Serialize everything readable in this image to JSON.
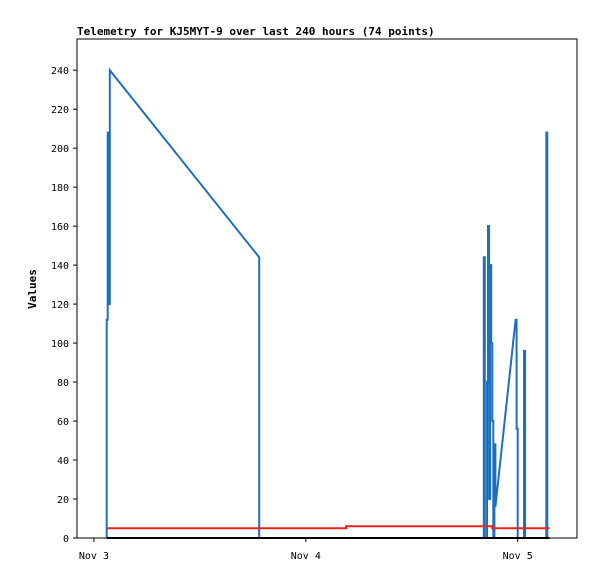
{
  "chart_data": {
    "type": "line",
    "title": "Telemetry for KJ5MYT-9 over last 240 hours (74 points)",
    "xlabel": "",
    "ylabel": "Values",
    "grid": false,
    "legend": "none",
    "xlim": [
      -0.08,
      2.28
    ],
    "ylim": [
      0,
      256
    ],
    "yticks": [
      0,
      20,
      40,
      60,
      80,
      100,
      120,
      140,
      160,
      180,
      200,
      220,
      240
    ],
    "xticks": [
      {
        "value": 0,
        "label": "Nov 3"
      },
      {
        "value": 1,
        "label": "Nov 4"
      },
      {
        "value": 2,
        "label": "Nov 5"
      }
    ],
    "series": [
      {
        "color": "#1f6fbf",
        "points": [
          [
            0.06,
            0
          ],
          [
            0.06,
            112
          ],
          [
            0.065,
            112
          ],
          [
            0.065,
            208
          ],
          [
            0.07,
            208
          ],
          [
            0.07,
            120
          ],
          [
            0.075,
            120
          ],
          [
            0.075,
            240
          ],
          [
            0.78,
            144
          ],
          [
            0.78,
            0
          ],
          [
            1.84,
            0
          ],
          [
            1.84,
            144
          ],
          [
            1.845,
            144
          ],
          [
            1.845,
            0
          ],
          [
            1.855,
            0
          ],
          [
            1.855,
            80
          ],
          [
            1.86,
            80
          ],
          [
            1.86,
            160
          ],
          [
            1.865,
            160
          ],
          [
            1.865,
            20
          ],
          [
            1.87,
            20
          ],
          [
            1.87,
            140
          ],
          [
            1.875,
            140
          ],
          [
            1.875,
            100
          ],
          [
            1.88,
            100
          ],
          [
            1.88,
            60
          ],
          [
            1.885,
            60
          ],
          [
            1.885,
            0
          ],
          [
            1.89,
            0
          ],
          [
            1.89,
            48
          ],
          [
            1.895,
            48
          ],
          [
            1.895,
            16
          ],
          [
            1.99,
            112
          ],
          [
            1.995,
            112
          ],
          [
            1.995,
            56
          ],
          [
            2.0,
            56
          ],
          [
            2.0,
            0
          ],
          [
            2.03,
            0
          ],
          [
            2.03,
            96
          ],
          [
            2.035,
            96
          ],
          [
            2.035,
            0
          ],
          [
            2.135,
            0
          ],
          [
            2.135,
            208
          ],
          [
            2.14,
            208
          ],
          [
            2.14,
            0
          ]
        ]
      },
      {
        "color": "#e8231f",
        "points": [
          [
            0.06,
            5
          ],
          [
            1.19,
            5
          ],
          [
            1.19,
            6
          ],
          [
            1.88,
            6
          ],
          [
            1.88,
            5
          ],
          [
            2.15,
            5
          ]
        ]
      },
      {
        "color": "#000000",
        "points": [
          [
            0.06,
            0
          ],
          [
            2.15,
            0
          ]
        ]
      }
    ]
  }
}
